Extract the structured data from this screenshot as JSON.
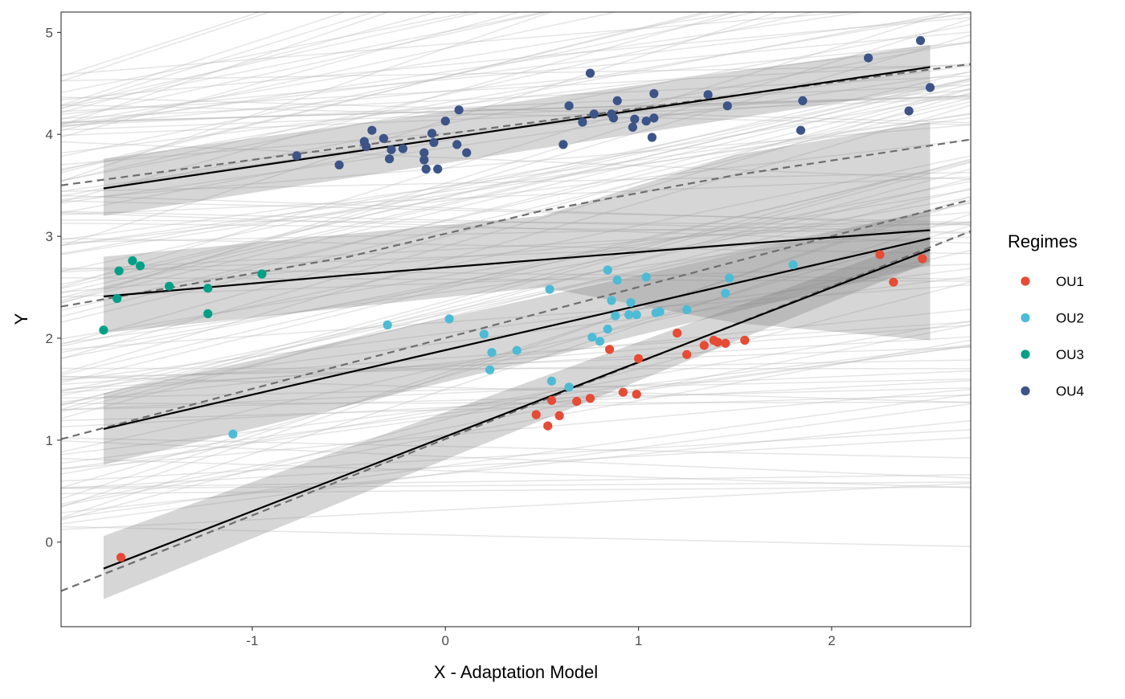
{
  "chart_data": {
    "type": "scatter",
    "title": "",
    "xlabel": "X - Adaptation Model",
    "ylabel": "Y",
    "xlim": [
      -1.99,
      2.72
    ],
    "ylim": [
      -0.83,
      5.2
    ],
    "x_ticks": [
      -1,
      0,
      1,
      2
    ],
    "y_ticks": [
      0,
      1,
      2,
      3,
      4,
      5
    ],
    "grid": false,
    "legend": {
      "title": "Regimes",
      "position": "right"
    },
    "colors": {
      "OU1": "#E64B35",
      "OU2": "#4DBBD5",
      "OU3": "#00A087",
      "OU4": "#3C5488"
    },
    "background_lines": {
      "count": 140,
      "color": "#bebebe"
    },
    "series": [
      {
        "name": "OU1",
        "color": "#E64B35",
        "points": [
          [
            -1.68,
            -0.15
          ],
          [
            0.47,
            1.25
          ],
          [
            0.53,
            1.14
          ],
          [
            0.55,
            1.39
          ],
          [
            0.59,
            1.24
          ],
          [
            0.68,
            1.38
          ],
          [
            0.75,
            1.41
          ],
          [
            0.85,
            1.89
          ],
          [
            0.92,
            1.47
          ],
          [
            0.99,
            1.45
          ],
          [
            1.0,
            1.8
          ],
          [
            1.2,
            2.05
          ],
          [
            1.25,
            1.84
          ],
          [
            1.34,
            1.93
          ],
          [
            1.39,
            1.98
          ],
          [
            1.41,
            1.96
          ],
          [
            1.45,
            1.95
          ],
          [
            1.55,
            1.98
          ],
          [
            2.25,
            2.82
          ],
          [
            2.32,
            2.55
          ],
          [
            2.47,
            2.78
          ]
        ]
      },
      {
        "name": "OU2",
        "color": "#4DBBD5",
        "points": [
          [
            -1.1,
            1.06
          ],
          [
            -0.3,
            2.13
          ],
          [
            0.02,
            2.19
          ],
          [
            0.2,
            2.04
          ],
          [
            0.23,
            1.69
          ],
          [
            0.24,
            1.86
          ],
          [
            0.37,
            1.88
          ],
          [
            0.54,
            2.48
          ],
          [
            0.55,
            1.58
          ],
          [
            0.64,
            1.52
          ],
          [
            0.76,
            2.01
          ],
          [
            0.8,
            1.97
          ],
          [
            0.84,
            2.67
          ],
          [
            0.84,
            2.09
          ],
          [
            0.86,
            2.37
          ],
          [
            0.88,
            2.22
          ],
          [
            0.89,
            2.57
          ],
          [
            0.95,
            2.23
          ],
          [
            0.96,
            2.35
          ],
          [
            0.99,
            2.23
          ],
          [
            1.04,
            2.6
          ],
          [
            1.09,
            2.25
          ],
          [
            1.11,
            2.26
          ],
          [
            1.25,
            2.28
          ],
          [
            1.45,
            2.44
          ],
          [
            1.47,
            2.59
          ],
          [
            1.8,
            2.72
          ]
        ]
      },
      {
        "name": "OU3",
        "color": "#00A087",
        "points": [
          [
            -1.77,
            2.08
          ],
          [
            -1.7,
            2.39
          ],
          [
            -1.69,
            2.66
          ],
          [
            -1.62,
            2.76
          ],
          [
            -1.58,
            2.71
          ],
          [
            -1.43,
            2.51
          ],
          [
            -1.23,
            2.49
          ],
          [
            -1.23,
            2.24
          ],
          [
            -0.95,
            2.63
          ]
        ]
      },
      {
        "name": "OU4",
        "color": "#3C5488",
        "points": [
          [
            -0.77,
            3.79
          ],
          [
            -0.55,
            3.7
          ],
          [
            -0.42,
            3.93
          ],
          [
            -0.41,
            3.88
          ],
          [
            -0.38,
            4.04
          ],
          [
            -0.32,
            3.96
          ],
          [
            -0.29,
            3.76
          ],
          [
            -0.28,
            3.85
          ],
          [
            -0.22,
            3.86
          ],
          [
            -0.11,
            3.82
          ],
          [
            -0.11,
            3.75
          ],
          [
            -0.1,
            3.66
          ],
          [
            -0.07,
            4.01
          ],
          [
            -0.06,
            3.92
          ],
          [
            -0.04,
            3.66
          ],
          [
            0.0,
            4.13
          ],
          [
            0.06,
            3.9
          ],
          [
            0.07,
            4.24
          ],
          [
            0.11,
            3.82
          ],
          [
            0.61,
            3.9
          ],
          [
            0.64,
            4.28
          ],
          [
            0.71,
            4.12
          ],
          [
            0.75,
            4.6
          ],
          [
            0.77,
            4.2
          ],
          [
            0.86,
            4.2
          ],
          [
            0.87,
            4.16
          ],
          [
            0.89,
            4.33
          ],
          [
            0.97,
            4.07
          ],
          [
            0.98,
            4.15
          ],
          [
            1.04,
            4.13
          ],
          [
            1.07,
            3.97
          ],
          [
            1.08,
            4.16
          ],
          [
            1.08,
            4.4
          ],
          [
            1.36,
            4.39
          ],
          [
            1.46,
            4.28
          ],
          [
            1.84,
            4.04
          ],
          [
            1.85,
            4.33
          ],
          [
            2.19,
            4.75
          ],
          [
            2.4,
            4.23
          ],
          [
            2.46,
            4.92
          ],
          [
            2.51,
            4.46
          ]
        ]
      }
    ],
    "fits": [
      {
        "line": [
          [
            -1.77,
            3.47
          ],
          [
            2.51,
            4.66
          ]
        ],
        "band_upper": [
          [
            -1.77,
            3.76
          ],
          [
            2.51,
            4.88
          ]
        ],
        "band_lower": [
          [
            -1.77,
            3.2
          ],
          [
            2.51,
            4.45
          ]
        ],
        "dashed": [
          [
            -1.99,
            3.5
          ],
          [
            2.72,
            4.69
          ]
        ]
      },
      {
        "line": [
          [
            -1.77,
            2.41
          ],
          [
            -0.5,
            2.62
          ],
          [
            0.5,
            2.77
          ],
          [
            1.5,
            2.92
          ],
          [
            2.51,
            3.06
          ]
        ],
        "band_upper": [
          [
            -1.77,
            2.8
          ],
          [
            0.5,
            3.2
          ],
          [
            1.5,
            3.8
          ],
          [
            2.51,
            4.12
          ]
        ],
        "band_lower": [
          [
            -1.77,
            2.05
          ],
          [
            0.5,
            2.5
          ],
          [
            1.5,
            2.15
          ],
          [
            2.51,
            1.98
          ]
        ],
        "dashed": [
          [
            -1.99,
            2.31
          ],
          [
            -0.5,
            2.8
          ],
          [
            0.5,
            3.25
          ],
          [
            1.5,
            3.6
          ],
          [
            2.72,
            3.95
          ]
        ]
      },
      {
        "line": [
          [
            -1.77,
            1.11
          ],
          [
            2.51,
            2.98
          ]
        ],
        "band_upper": [
          [
            -1.77,
            1.46
          ],
          [
            2.51,
            3.25
          ]
        ],
        "band_lower": [
          [
            -1.77,
            0.76
          ],
          [
            2.51,
            2.72
          ]
        ],
        "dashed": [
          [
            -1.99,
            1.01
          ],
          [
            2.72,
            3.36
          ]
        ]
      },
      {
        "line": [
          [
            -1.77,
            -0.26
          ],
          [
            2.51,
            2.87
          ]
        ],
        "band_upper": [
          [
            -1.77,
            0.06
          ],
          [
            2.51,
            3.0
          ]
        ],
        "band_lower": [
          [
            -1.77,
            -0.56
          ],
          [
            2.51,
            2.75
          ]
        ],
        "dashed": [
          [
            -1.99,
            -0.48
          ],
          [
            2.72,
            3.05
          ]
        ]
      }
    ]
  }
}
